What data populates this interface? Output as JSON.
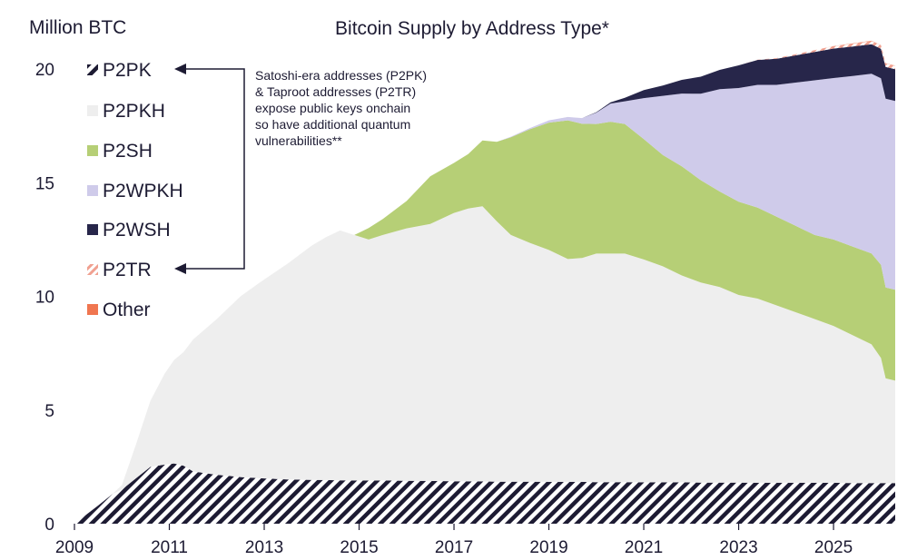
{
  "chart_data": {
    "type": "area",
    "stacked": true,
    "title": "Bitcoin Supply by Address Type*",
    "ylabel": "Million BTC",
    "xlabel": "",
    "xlim": [
      2009,
      2026.3
    ],
    "ylim": [
      0,
      20
    ],
    "x_ticks": [
      "2009",
      "2011",
      "2013",
      "2015",
      "2017",
      "2019",
      "2021",
      "2023",
      "2025"
    ],
    "y_ticks": [
      "0",
      "5",
      "10",
      "15",
      "20"
    ],
    "grid": false,
    "legend_position": "top-left",
    "annotation": "Satoshi-era addresses (P2PK) & Taroot addresses (P2TR) expose public keys onchain so have additional quantum vulnerabilities**",
    "annotation_lines": [
      "Satoshi-era addresses (P2PK)",
      "& Taproot addresses (P2TR)",
      "expose public keys onchain",
      "so have additional quantum",
      "vulnerabilities**"
    ],
    "x": [
      2009.0,
      2009.5,
      2009.8,
      2010.0,
      2010.3,
      2010.6,
      2010.9,
      2011.1,
      2011.3,
      2011.5,
      2012.0,
      2012.5,
      2012.9,
      2013.5,
      2014.0,
      2014.3,
      2014.6,
      2014.9,
      2015.2,
      2015.5,
      2016.0,
      2016.5,
      2017.0,
      2017.3,
      2017.6,
      2017.9,
      2018.2,
      2018.6,
      2019.0,
      2019.4,
      2019.7,
      2020.0,
      2020.3,
      2020.6,
      2021.0,
      2021.4,
      2021.8,
      2022.2,
      2022.6,
      2023.0,
      2023.4,
      2023.8,
      2024.2,
      2024.6,
      2025.0,
      2025.4,
      2025.8,
      2026.0,
      2026.1,
      2026.3
    ],
    "series": [
      {
        "name": "P2PK",
        "color": "#1d1b33",
        "pattern": "hatch",
        "values": [
          0,
          0.8,
          1.3,
          1.5,
          2.0,
          2.5,
          2.6,
          2.65,
          2.55,
          2.3,
          2.15,
          2.05,
          2.0,
          1.95,
          1.93,
          1.92,
          1.91,
          1.9,
          1.9,
          1.9,
          1.89,
          1.88,
          1.87,
          1.86,
          1.86,
          1.85,
          1.85,
          1.85,
          1.84,
          1.84,
          1.84,
          1.83,
          1.83,
          1.83,
          1.82,
          1.82,
          1.82,
          1.81,
          1.81,
          1.81,
          1.8,
          1.8,
          1.8,
          1.8,
          1.8,
          1.79,
          1.79,
          1.79,
          1.79,
          1.79
        ]
      },
      {
        "name": "P2PKH",
        "color": "#eeeeee",
        "values": [
          0,
          0,
          0,
          0.2,
          1.5,
          2.9,
          4.0,
          4.55,
          5.0,
          5.8,
          6.85,
          7.95,
          8.6,
          9.5,
          10.3,
          10.68,
          10.99,
          10.8,
          10.6,
          10.8,
          11.1,
          11.3,
          11.8,
          12.0,
          12.1,
          11.45,
          10.85,
          10.5,
          10.2,
          9.8,
          9.85,
          10.05,
          10.05,
          10.05,
          9.8,
          9.5,
          9.1,
          8.8,
          8.6,
          8.25,
          8.1,
          7.8,
          7.5,
          7.2,
          6.9,
          6.5,
          6.1,
          5.5,
          4.6,
          4.5
        ]
      },
      {
        "name": "P2SH",
        "color": "#b6cf76",
        "values": [
          0,
          0,
          0,
          0,
          0,
          0,
          0,
          0,
          0,
          0,
          0,
          0,
          0,
          0,
          0,
          0,
          0,
          0,
          0.5,
          0.7,
          1.2,
          2.1,
          2.2,
          2.4,
          2.9,
          3.5,
          4.3,
          5.0,
          5.6,
          6.1,
          5.9,
          5.7,
          5.8,
          5.7,
          5.3,
          4.9,
          4.8,
          4.5,
          4.2,
          4.1,
          4.0,
          3.9,
          3.8,
          3.7,
          3.8,
          3.9,
          4.0,
          4.1,
          4.0,
          4.0
        ]
      },
      {
        "name": "P2WPKH",
        "color": "#cfcbea",
        "values": [
          0,
          0,
          0,
          0,
          0,
          0,
          0,
          0,
          0,
          0,
          0,
          0,
          0,
          0,
          0,
          0,
          0,
          0,
          0,
          0,
          0,
          0,
          0,
          0,
          0,
          0,
          0.02,
          0.05,
          0.1,
          0.15,
          0.25,
          0.5,
          0.8,
          1.0,
          1.8,
          2.6,
          3.2,
          3.8,
          4.5,
          5.0,
          5.4,
          5.8,
          6.3,
          6.8,
          7.1,
          7.5,
          7.9,
          8.2,
          8.3,
          8.3
        ]
      },
      {
        "name": "P2WSH",
        "color": "#27264a",
        "values": [
          0,
          0,
          0,
          0,
          0,
          0,
          0,
          0,
          0,
          0,
          0,
          0,
          0,
          0,
          0,
          0,
          0,
          0,
          0,
          0,
          0,
          0,
          0,
          0,
          0,
          0,
          0,
          0,
          0,
          0,
          0,
          0.02,
          0.05,
          0.15,
          0.35,
          0.45,
          0.6,
          0.75,
          0.85,
          1.0,
          1.1,
          1.15,
          1.2,
          1.25,
          1.3,
          1.3,
          1.3,
          1.3,
          1.4,
          1.4
        ]
      },
      {
        "name": "P2TR",
        "color": "#f0a090",
        "pattern": "hatch",
        "values": [
          0,
          0,
          0,
          0,
          0,
          0,
          0,
          0,
          0,
          0,
          0,
          0,
          0,
          0,
          0,
          0,
          0,
          0,
          0,
          0,
          0,
          0,
          0,
          0,
          0,
          0,
          0,
          0,
          0,
          0,
          0,
          0,
          0,
          0,
          0,
          0,
          0,
          0,
          0,
          0,
          0.01,
          0.03,
          0.05,
          0.08,
          0.1,
          0.12,
          0.14,
          0.15,
          0.15,
          0.15
        ]
      },
      {
        "name": "Other",
        "color": "#f07650",
        "values": [
          0,
          0,
          0,
          0,
          0,
          0,
          0,
          0,
          0,
          0,
          0,
          0,
          0,
          0,
          0,
          0,
          0,
          0,
          0,
          0,
          0,
          0,
          0,
          0,
          0,
          0,
          0,
          0,
          0,
          0,
          0,
          0,
          0,
          0,
          0,
          0,
          0,
          0,
          0,
          0,
          0,
          0,
          0,
          0,
          0.01,
          0.01,
          0.01,
          0.01,
          0.01,
          0.01
        ]
      }
    ]
  }
}
